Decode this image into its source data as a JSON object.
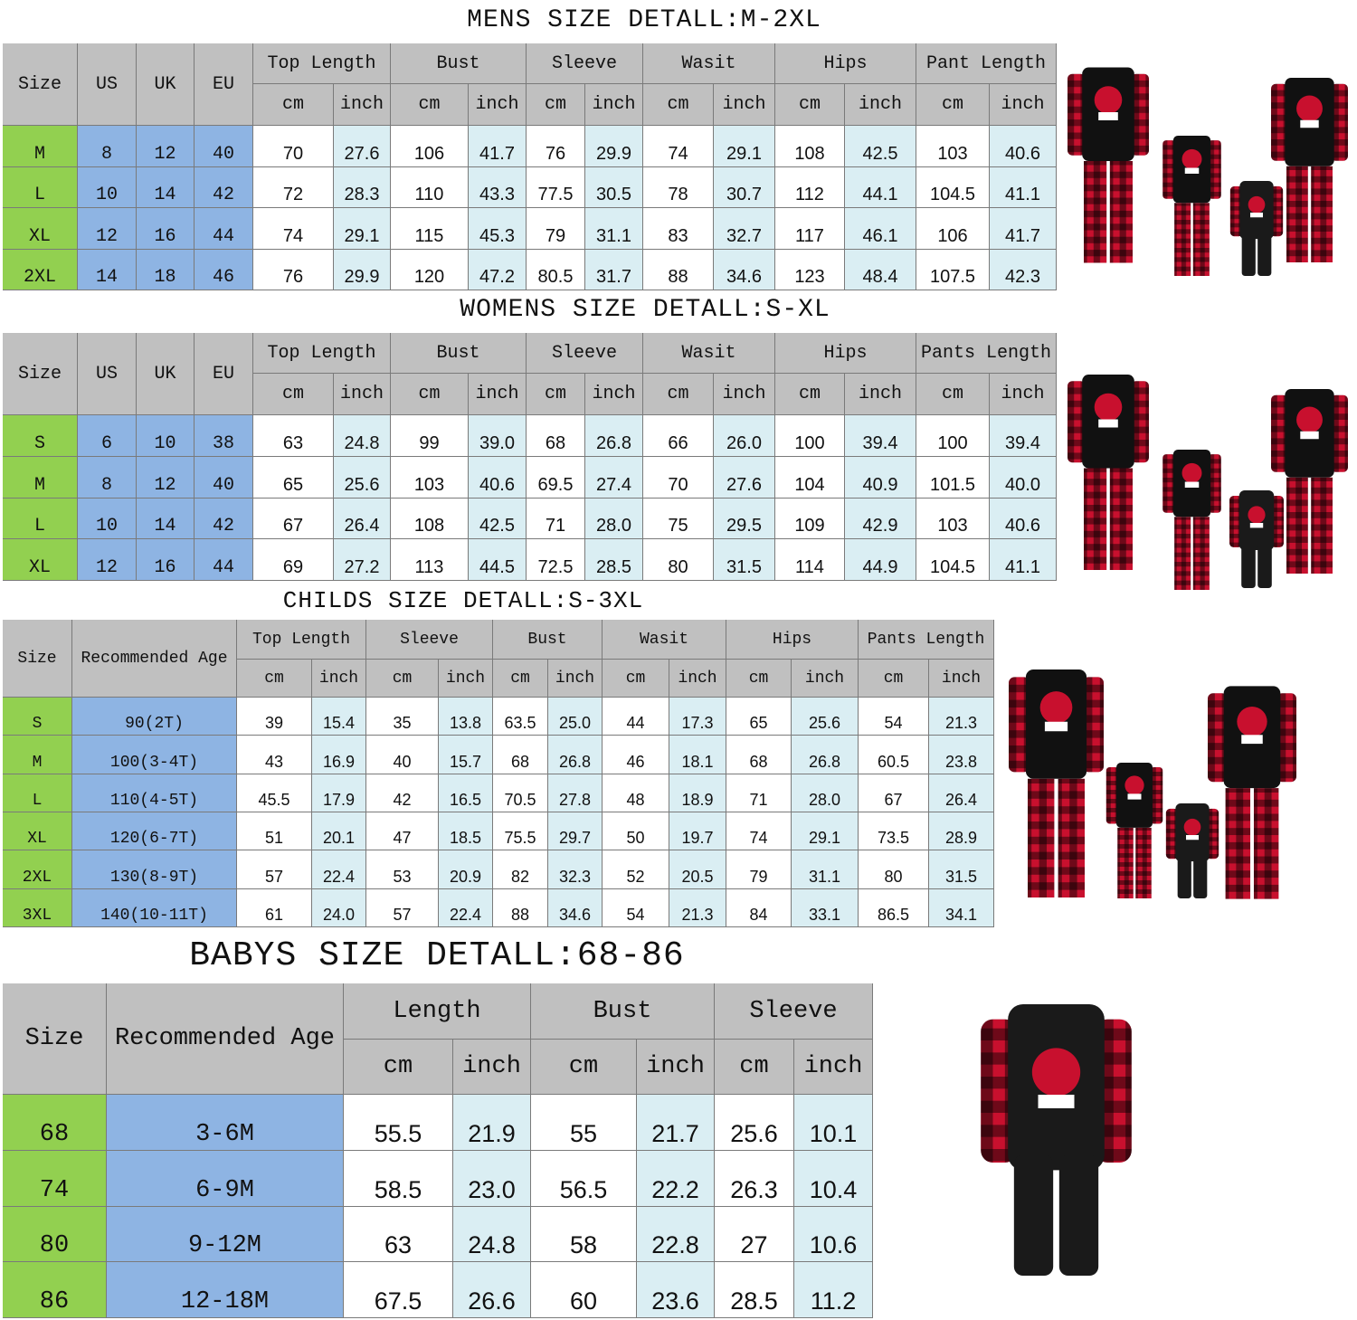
{
  "tables": [
    {
      "title": "MENS SIZE DETALL:M-2XL",
      "fixed_headers": [
        "Size",
        "US",
        "UK",
        "EU"
      ],
      "groups": [
        "Top Length",
        "Bust",
        "Sleeve",
        "Wasit",
        "Hips",
        "Pant Length"
      ],
      "units": [
        "cm",
        "inch"
      ],
      "rows": [
        [
          "M",
          "8",
          "12",
          "40",
          "70",
          "27.6",
          "106",
          "41.7",
          "76",
          "29.9",
          "74",
          "29.1",
          "108",
          "42.5",
          "103",
          "40.6"
        ],
        [
          "L",
          "10",
          "14",
          "42",
          "72",
          "28.3",
          "110",
          "43.3",
          "77.5",
          "30.5",
          "78",
          "30.7",
          "112",
          "44.1",
          "104.5",
          "41.1"
        ],
        [
          "XL",
          "12",
          "16",
          "44",
          "74",
          "29.1",
          "115",
          "45.3",
          "79",
          "31.1",
          "83",
          "32.7",
          "117",
          "46.1",
          "106",
          "41.7"
        ],
        [
          "2XL",
          "14",
          "18",
          "46",
          "76",
          "29.9",
          "120",
          "47.2",
          "80.5",
          "31.7",
          "88",
          "34.6",
          "123",
          "48.4",
          "107.5",
          "42.3"
        ]
      ]
    },
    {
      "title": "WOMENS SIZE DETALL:S-XL",
      "fixed_headers": [
        "Size",
        "US",
        "UK",
        "EU"
      ],
      "groups": [
        "Top Length",
        "Bust",
        "Sleeve",
        "Wasit",
        "Hips",
        "Pants Length"
      ],
      "units": [
        "cm",
        "inch"
      ],
      "rows": [
        [
          "S",
          "6",
          "10",
          "38",
          "63",
          "24.8",
          "99",
          "39.0",
          "68",
          "26.8",
          "66",
          "26.0",
          "100",
          "39.4",
          "100",
          "39.4"
        ],
        [
          "M",
          "8",
          "12",
          "40",
          "65",
          "25.6",
          "103",
          "40.6",
          "69.5",
          "27.4",
          "70",
          "27.6",
          "104",
          "40.9",
          "101.5",
          "40.0"
        ],
        [
          "L",
          "10",
          "14",
          "42",
          "67",
          "26.4",
          "108",
          "42.5",
          "71",
          "28.0",
          "75",
          "29.5",
          "109",
          "42.9",
          "103",
          "40.6"
        ],
        [
          "XL",
          "12",
          "16",
          "44",
          "69",
          "27.2",
          "113",
          "44.5",
          "72.5",
          "28.5",
          "80",
          "31.5",
          "114",
          "44.9",
          "104.5",
          "41.1"
        ]
      ]
    },
    {
      "title": "CHILDS SIZE DETALL:S-3XL",
      "fixed_headers": [
        "Size",
        "Recommended Age"
      ],
      "groups": [
        "Top Length",
        "Sleeve",
        "Bust",
        "Wasit",
        "Hips",
        "Pants Length"
      ],
      "units": [
        "cm",
        "inch"
      ],
      "rows": [
        [
          "S",
          "90(2T)",
          "39",
          "15.4",
          "35",
          "13.8",
          "63.5",
          "25.0",
          "44",
          "17.3",
          "65",
          "25.6",
          "54",
          "21.3"
        ],
        [
          "M",
          "100(3-4T)",
          "43",
          "16.9",
          "40",
          "15.7",
          "68",
          "26.8",
          "46",
          "18.1",
          "68",
          "26.8",
          "60.5",
          "23.8"
        ],
        [
          "L",
          "110(4-5T)",
          "45.5",
          "17.9",
          "42",
          "16.5",
          "70.5",
          "27.8",
          "48",
          "18.9",
          "71",
          "28.0",
          "67",
          "26.4"
        ],
        [
          "XL",
          "120(6-7T)",
          "51",
          "20.1",
          "47",
          "18.5",
          "75.5",
          "29.7",
          "50",
          "19.7",
          "74",
          "29.1",
          "73.5",
          "28.9"
        ],
        [
          "2XL",
          "130(8-9T)",
          "57",
          "22.4",
          "53",
          "20.9",
          "82",
          "32.3",
          "52",
          "20.5",
          "79",
          "31.1",
          "80",
          "31.5"
        ],
        [
          "3XL",
          "140(10-11T)",
          "61",
          "24.0",
          "57",
          "22.4",
          "88",
          "34.6",
          "54",
          "21.3",
          "84",
          "33.1",
          "86.5",
          "34.1"
        ]
      ]
    },
    {
      "title": "BABYS SIZE DETALL:68-86",
      "fixed_headers": [
        "Size",
        "Recommended Age"
      ],
      "groups": [
        "Length",
        "Bust",
        "Sleeve"
      ],
      "units": [
        "cm",
        "inch"
      ],
      "rows": [
        [
          "68",
          "3-6M",
          "55.5",
          "21.9",
          "55",
          "21.7",
          "25.6",
          "10.1"
        ],
        [
          "74",
          "6-9M",
          "58.5",
          "23.0",
          "56.5",
          "22.2",
          "26.3",
          "10.4"
        ],
        [
          "80",
          "9-12M",
          "63",
          "24.8",
          "58",
          "22.8",
          "27",
          "10.6"
        ],
        [
          "86",
          "12-18M",
          "67.5",
          "26.6",
          "60",
          "23.6",
          "28.5",
          "11.2"
        ]
      ]
    }
  ]
}
